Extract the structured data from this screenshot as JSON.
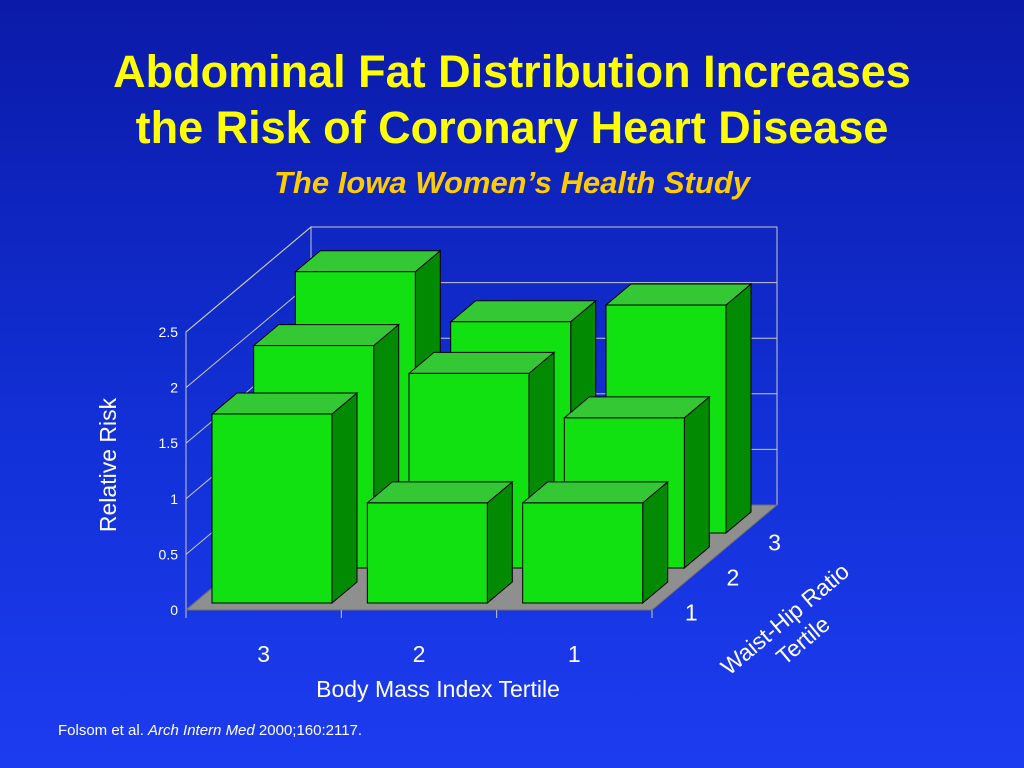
{
  "slide": {
    "title_line1": "Abdominal Fat Distribution Increases",
    "title_line2": "the Risk of Coronary Heart Disease",
    "subtitle": "The Iowa Women’s Health Study",
    "citation_authors": "Folsom et al. ",
    "citation_journal": "Arch Intern Med",
    "citation_ref": " 2000;160:2117."
  },
  "colors": {
    "background": "#1230d6",
    "title": "#ffff00",
    "subtitle": "#ffcc00",
    "bar_front": "#11e011",
    "bar_top": "#35c835",
    "bar_side": "#028a02",
    "floor": "#8f8f8f"
  },
  "chart_data": {
    "type": "bar",
    "subtype": "3d-column",
    "ylabel": "Relative Risk",
    "xlabel": "Body Mass Index Tertile",
    "zlabel": "Waist-Hip Ratio Tertile",
    "ylim": [
      0,
      2.5
    ],
    "yticks": [
      "0",
      "0.5",
      "1",
      "1.5",
      "2",
      "2.5"
    ],
    "categories": [
      "3",
      "2",
      "1"
    ],
    "depth_categories": [
      "1",
      "2",
      "3"
    ],
    "series": [
      {
        "name": "1",
        "values": [
          1.7,
          0.9,
          0.9
        ]
      },
      {
        "name": "2",
        "values": [
          2.0,
          1.75,
          1.35
        ]
      },
      {
        "name": "3",
        "values": [
          2.35,
          1.9,
          2.05
        ]
      }
    ],
    "grid": true
  }
}
